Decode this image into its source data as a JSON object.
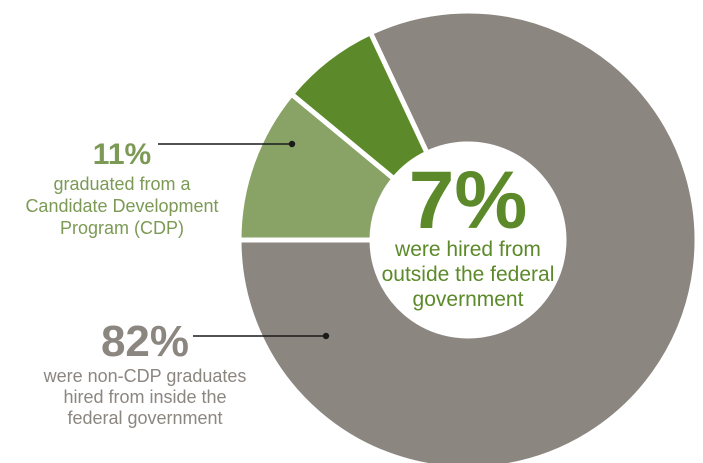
{
  "chart_data": {
    "type": "pie",
    "variant": "donut",
    "slices": [
      {
        "key": "non_cdp",
        "value": 82,
        "percent_label": "82%",
        "color": "#8c8680",
        "description": [
          "were non-CDP graduates",
          "hired from inside the",
          "federal government"
        ]
      },
      {
        "key": "cdp",
        "value": 11,
        "percent_label": "11%",
        "color": "#89a366",
        "description": [
          "graduated from a",
          "Candidate Development",
          "Program (CDP)"
        ]
      },
      {
        "key": "outside",
        "value": 7,
        "percent_label": "7%",
        "color": "#5c8a2a",
        "description": [
          "were hired from",
          "outside the federal",
          "government"
        ]
      }
    ]
  }
}
